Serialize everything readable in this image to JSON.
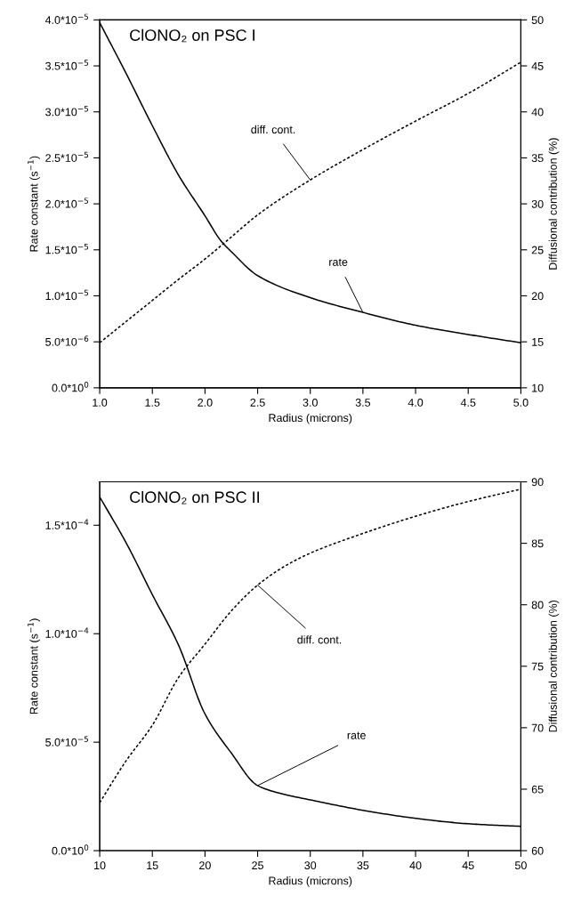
{
  "chart_data": [
    {
      "type": "line",
      "title": "ClONO₂ on PSC I",
      "xlabel": "Radius (microns)",
      "ylabel": "Rate constant (s$^{−1}$)",
      "y2label": "Diffusional contribution (%)",
      "xlim": [
        1,
        5
      ],
      "xticks": [
        {
          "value": 1,
          "label": "1.0"
        },
        {
          "value": 1.5,
          "label": "1.5"
        },
        {
          "value": 2,
          "label": "2.0"
        },
        {
          "value": 2.5,
          "label": "2.5"
        },
        {
          "value": 3,
          "label": "3.0"
        },
        {
          "value": 3.5,
          "label": "3.5"
        },
        {
          "value": 4,
          "label": "4.0"
        },
        {
          "value": 4.5,
          "label": "4.5"
        },
        {
          "value": 5,
          "label": "5.0"
        }
      ],
      "ylim": [
        0,
        4e-05
      ],
      "yticks": [
        {
          "value": 0,
          "label": "0.0*10$^{0}$"
        },
        {
          "value": 5e-06,
          "label": "5.0*10$^{−6}$"
        },
        {
          "value": 1e-05,
          "label": "1.0*10$^{−5}$"
        },
        {
          "value": 1.5e-05,
          "label": "1.5*10$^{−5}$"
        },
        {
          "value": 2e-05,
          "label": "2.0*10$^{−5}$"
        },
        {
          "value": 2.5e-05,
          "label": "2.5*10$^{−5}$"
        },
        {
          "value": 3e-05,
          "label": "3.0*10$^{−5}$"
        },
        {
          "value": 3.5e-05,
          "label": "3.5*10$^{−5}$"
        },
        {
          "value": 4e-05,
          "label": "4.0*10$^{−5}$"
        }
      ],
      "y2lim": [
        10,
        50
      ],
      "y2ticks": [
        10,
        15,
        20,
        25,
        30,
        35,
        40,
        45,
        50
      ],
      "grid": false,
      "marker": "none",
      "series": [
        {
          "color": "#000000",
          "line_style": "solid",
          "x": [
            1,
            1.25,
            1.5,
            1.75,
            2,
            2.15,
            2.25,
            2.5,
            3,
            3.5,
            4,
            4.5,
            5
          ],
          "values": [
            3.97e-05,
            3.42e-05,
            2.85e-05,
            2.31e-05,
            1.87e-05,
            1.6e-05,
            1.48e-05,
            1.22e-05,
            9.8e-06,
            8.2e-06,
            6.8e-06,
            5.8e-06,
            4.9e-06
          ]
        },
        {
          "color": "#000000",
          "line_style": "dotted",
          "axis": "y2",
          "x": [
            1,
            1.25,
            1.5,
            1.75,
            2,
            2.25,
            2.5,
            3,
            3.5,
            4,
            4.5,
            5
          ],
          "values": [
            14.9,
            17.2,
            19.5,
            21.8,
            24.0,
            26.4,
            28.8,
            32.6,
            35.9,
            39.0,
            42.0,
            45.4
          ]
        }
      ],
      "annotations": [
        {
          "text": "rate",
          "x": 3.5,
          "y": 8.2e-06
        },
        {
          "text": "diff. cont.",
          "x": 3,
          "y": 2.26e-05
        }
      ]
    },
    {
      "type": "line",
      "title": "ClONO₂ on PSC II",
      "xlabel": "Radius (microns)",
      "ylabel": "Rate constant (s$^{−1}$)",
      "y2label": "Diffusional contribution (%)",
      "xlim": [
        10,
        50
      ],
      "xticks": [
        10,
        15,
        20,
        25,
        30,
        35,
        40,
        45,
        50
      ],
      "ylim": [
        0,
        0.00017
      ],
      "yticks": [
        {
          "value": 0,
          "label": "0.0*10$^{0}$"
        },
        {
          "value": 5e-05,
          "label": "5.0*10$^{−5}$"
        },
        {
          "value": 0.0001,
          "label": "1.0*10$^{−4}$"
        },
        {
          "value": 0.00015,
          "label": "1.5*10$^{−4}$"
        }
      ],
      "y2lim": [
        60,
        90
      ],
      "y2ticks": [
        60,
        65,
        70,
        75,
        80,
        85,
        90
      ],
      "grid": false,
      "marker": "none",
      "series": [
        {
          "color": "#000000",
          "line_style": "solid",
          "x": [
            10,
            12.5,
            15,
            17.5,
            20,
            22.5,
            25,
            27.5,
            30,
            35,
            40,
            45,
            50
          ],
          "values": [
            0.000163,
            0.000142,
            0.000118,
            9.46e-05,
            6.3e-05,
            4.5e-05,
            3e-05,
            2.6e-05,
            2.34e-05,
            1.86e-05,
            1.49e-05,
            1.24e-05,
            1.12e-05
          ]
        },
        {
          "color": "#000000",
          "line_style": "dotted",
          "axis": "y2",
          "x": [
            10,
            12.5,
            15,
            17.5,
            20,
            22.5,
            25,
            27.5,
            30,
            35,
            40,
            45,
            50
          ],
          "values": [
            63.9,
            67.3,
            70.2,
            74.1,
            76.8,
            79.5,
            81.6,
            83.1,
            84.2,
            85.8,
            87.2,
            88.4,
            89.4
          ]
        }
      ],
      "annotations": [
        {
          "text": "rate",
          "x": 25,
          "y": 3e-05
        },
        {
          "text": "diff. cont.",
          "x": 25,
          "y": 0.0001224
        }
      ]
    }
  ]
}
